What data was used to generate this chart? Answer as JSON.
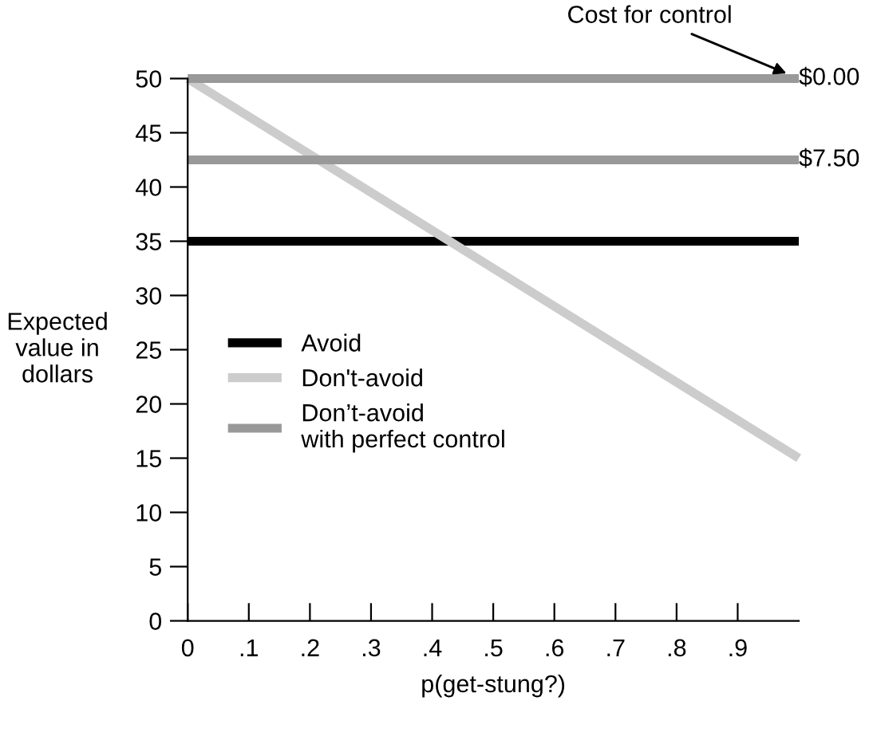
{
  "chart_data": {
    "type": "line",
    "xlabel": "p(get-stung?)",
    "ylabel": "Expected\nvalue in\ndollars",
    "x": [
      0,
      1
    ],
    "xlim": [
      0,
      1
    ],
    "ylim": [
      0,
      50
    ],
    "xticks": [
      {
        "value": 0,
        "label": "0"
      },
      {
        "value": 0.1,
        "label": ".1"
      },
      {
        "value": 0.2,
        "label": ".2"
      },
      {
        "value": 0.3,
        "label": ".3"
      },
      {
        "value": 0.4,
        "label": ".4"
      },
      {
        "value": 0.5,
        "label": ".5"
      },
      {
        "value": 0.6,
        "label": ".6"
      },
      {
        "value": 0.7,
        "label": ".7"
      },
      {
        "value": 0.8,
        "label": ".8"
      },
      {
        "value": 0.9,
        "label": ".9"
      }
    ],
    "yticks": [
      0,
      5,
      10,
      15,
      20,
      25,
      30,
      35,
      40,
      45,
      50
    ],
    "series": [
      {
        "name": "Avoid",
        "color": "#000000",
        "values": [
          35,
          35
        ]
      },
      {
        "name": "Don't-avoid",
        "color": "#cccccc",
        "values": [
          50,
          15
        ]
      },
      {
        "name": "Don’t-avoid\nwith perfect control",
        "color": "#999999",
        "values": [
          50,
          50
        ]
      },
      {
        "color": "#999999",
        "values": [
          42.5,
          42.5
        ]
      }
    ],
    "annotations": [
      {
        "text": "$0.00",
        "x": 1,
        "y": 50
      },
      {
        "text": "$7.50",
        "x": 1,
        "y": 42.5
      },
      "Cost for control"
    ],
    "legend": "left",
    "grid": false,
    "marker": "none",
    "line_style": "solid"
  }
}
